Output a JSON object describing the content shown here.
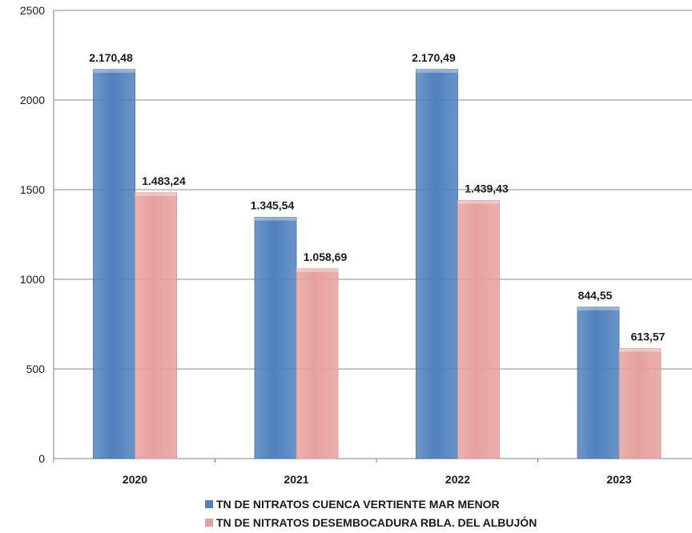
{
  "chart_data": {
    "type": "bar",
    "categories": [
      "2020",
      "2021",
      "2022",
      "2023"
    ],
    "series": [
      {
        "name": "TN  DE NITRATOS CUENCA VERTIENTE MAR MENOR",
        "color": "#4f81bd",
        "values": [
          2170.48,
          1345.54,
          2170.49,
          844.55
        ],
        "labels": [
          "2.170,48",
          "1.345,54",
          "2.170,49",
          "844,55"
        ]
      },
      {
        "name": "TN  DE NITRATOS DESEMBOCADURA RBLA. DEL ALBUJÓN",
        "color": "#e6a19e",
        "values": [
          1483.24,
          1058.69,
          1439.43,
          613.57
        ],
        "labels": [
          "1.483,24",
          "1.058,69",
          "1.439,43",
          "613,57"
        ]
      }
    ],
    "ylim": [
      0,
      2500
    ],
    "yticks": [
      "0",
      "500",
      "1000",
      "1500",
      "2000",
      "2500"
    ],
    "grid": true,
    "legend_position": "bottom"
  }
}
